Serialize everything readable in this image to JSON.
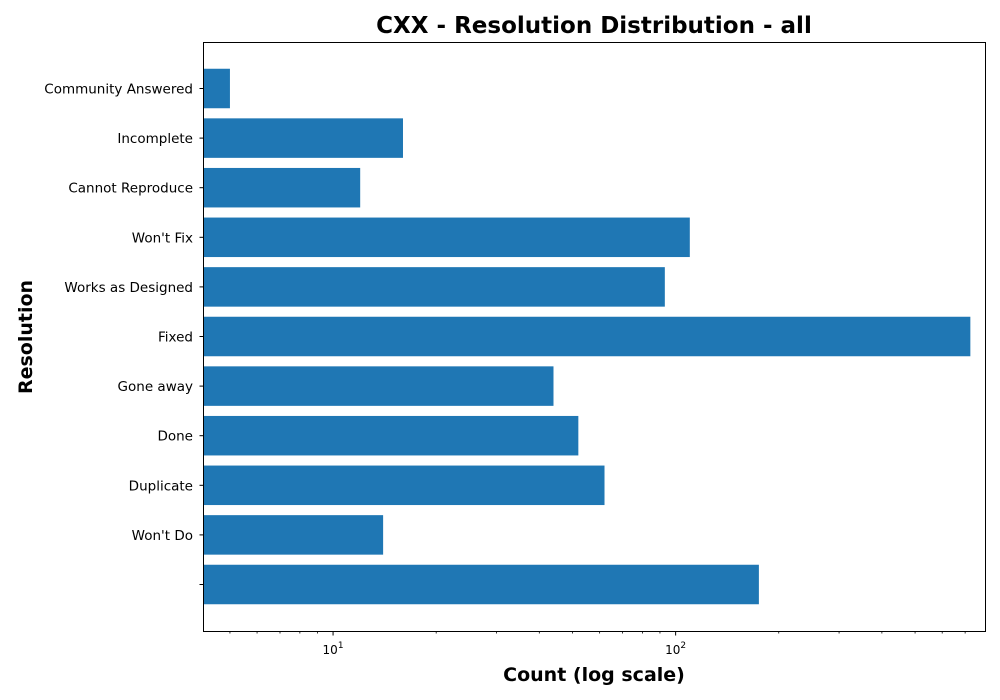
{
  "chart_data": {
    "type": "bar",
    "orientation": "horizontal",
    "title": "CXX - Resolution Distribution - all",
    "xlabel": "Count (log scale)",
    "ylabel": "Resolution",
    "x_scale": "log",
    "xlim": [
      4.2,
      800
    ],
    "x_ticks": [
      {
        "value": 10,
        "base": "10",
        "exp": "1"
      },
      {
        "value": 100,
        "base": "10",
        "exp": "2"
      }
    ],
    "categories": [
      "",
      "Won't Do",
      "Duplicate",
      "Done",
      "Gone away",
      "Fixed",
      "Works as Designed",
      "Won't Fix",
      "Cannot Reproduce",
      "Incomplete",
      "Community Answered"
    ],
    "values": [
      175,
      14,
      62,
      52,
      44,
      725,
      93,
      110,
      12,
      16,
      5
    ],
    "bar_color": "#1f77b4",
    "grid": false,
    "legend": "none"
  }
}
